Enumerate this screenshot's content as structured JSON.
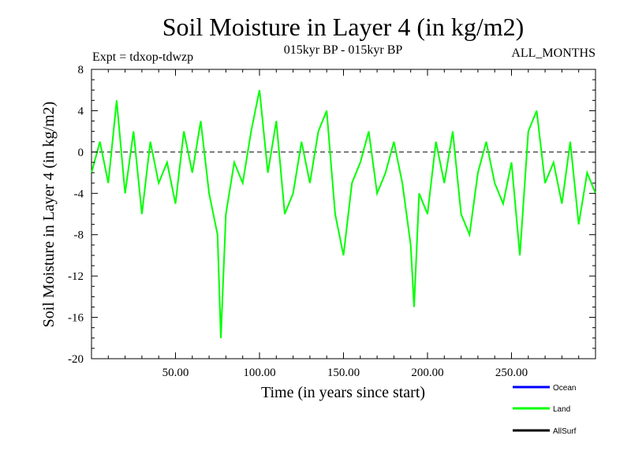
{
  "chart_data": {
    "type": "line",
    "title": "Soil Moisture in Layer 4 (in kg/m2)",
    "subtitle_left": "Expt = tdxop-tdwzp",
    "subtitle_center": "015kyr BP - 015kyr BP",
    "subtitle_right": "ALL_MONTHS",
    "xlabel": "Time (in years since start)",
    "ylabel": "Soil Moisture in Layer 4 (in kg/m2)",
    "xlim": [
      0,
      300
    ],
    "ylim": [
      -20,
      8
    ],
    "x_ticks": [
      50,
      100,
      150,
      200,
      250
    ],
    "x_tick_labels": [
      "50.00",
      "100.00",
      "150.00",
      "200.00",
      "250.00"
    ],
    "y_ticks": [
      8,
      4,
      0,
      -4,
      -8,
      -12,
      -16,
      -20
    ],
    "y_tick_labels": [
      "8",
      "4",
      "0",
      "-4",
      "-8",
      "-12",
      "-16",
      "-20"
    ],
    "reference_line": 0,
    "series": [
      {
        "name": "Land",
        "color": "#00ff00",
        "x": [
          0,
          5,
          10,
          15,
          20,
          25,
          30,
          35,
          40,
          45,
          50,
          55,
          60,
          65,
          70,
          75,
          77,
          80,
          85,
          90,
          95,
          100,
          105,
          110,
          115,
          120,
          125,
          130,
          135,
          140,
          145,
          150,
          155,
          160,
          165,
          170,
          175,
          180,
          185,
          190,
          192,
          195,
          200,
          205,
          210,
          215,
          220,
          225,
          230,
          235,
          240,
          245,
          250,
          255,
          260,
          265,
          270,
          275,
          280,
          285,
          290,
          295,
          300
        ],
        "values": [
          -2,
          1,
          -3,
          5,
          -4,
          2,
          -6,
          1,
          -3,
          -1,
          -5,
          2,
          -2,
          3,
          -4,
          -8,
          -18,
          -6,
          -1,
          -3,
          2,
          6,
          -2,
          3,
          -6,
          -4,
          1,
          -3,
          2,
          4,
          -6,
          -10,
          -3,
          -1,
          2,
          -4,
          -2,
          1,
          -3,
          -9,
          -15,
          -4,
          -6,
          1,
          -3,
          2,
          -6,
          -8,
          -2,
          1,
          -3,
          -5,
          -1,
          -10,
          2,
          4,
          -3,
          -1,
          -5,
          1,
          -7,
          -2,
          -4
        ]
      }
    ],
    "legend": [
      {
        "name": "Ocean",
        "color": "#0000ff"
      },
      {
        "name": "Land",
        "color": "#00ff00"
      },
      {
        "name": "AllSurf",
        "color": "#000000"
      }
    ],
    "grid": false,
    "legend_position": "bottom-right"
  }
}
